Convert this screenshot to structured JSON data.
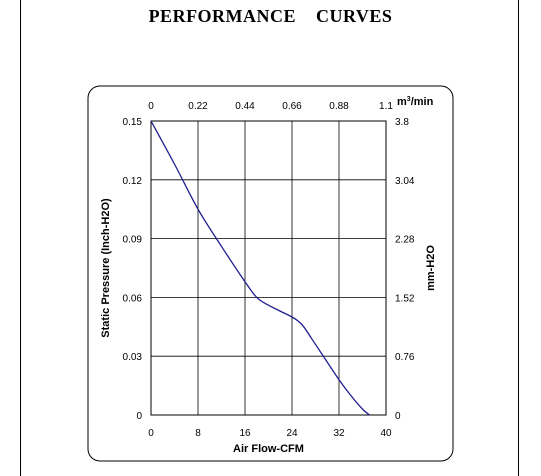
{
  "title": "PERFORMANCE    CURVES",
  "chart_data": {
    "type": "line",
    "xlabel": "Air Flow-CFM",
    "ylabel": "Static Pressure (Inch-H2O)",
    "x2label": "m",
    "x2label_sup": "3",
    "x2label_rest": "/min",
    "y2label": "mm-H2O",
    "xlim": [
      0,
      40
    ],
    "ylim": [
      0,
      0.15
    ],
    "grid": true,
    "x_ticks": [
      "0",
      "8",
      "16",
      "24",
      "32",
      "40"
    ],
    "y_ticks": [
      "0",
      "0.03",
      "0.06",
      "0.09",
      "0.12",
      "0.15"
    ],
    "x2_ticks": [
      "0",
      "0.22",
      "0.44",
      "0.66",
      "0.88",
      "1.1"
    ],
    "y2_ticks": [
      "0",
      "0.76",
      "1.52",
      "2.28",
      "3.04",
      "3.8"
    ],
    "series": [
      {
        "color": "#1f1f8f",
        "x": [
          0,
          4,
          8,
          12,
          16,
          18,
          20,
          22,
          24,
          25,
          26,
          28,
          30,
          32,
          34,
          36,
          37.2
        ],
        "y": [
          0.15,
          0.128,
          0.105,
          0.086,
          0.068,
          0.06,
          0.056,
          0.053,
          0.05,
          0.048,
          0.045,
          0.036,
          0.027,
          0.018,
          0.01,
          0.003,
          0.0
        ]
      }
    ]
  }
}
